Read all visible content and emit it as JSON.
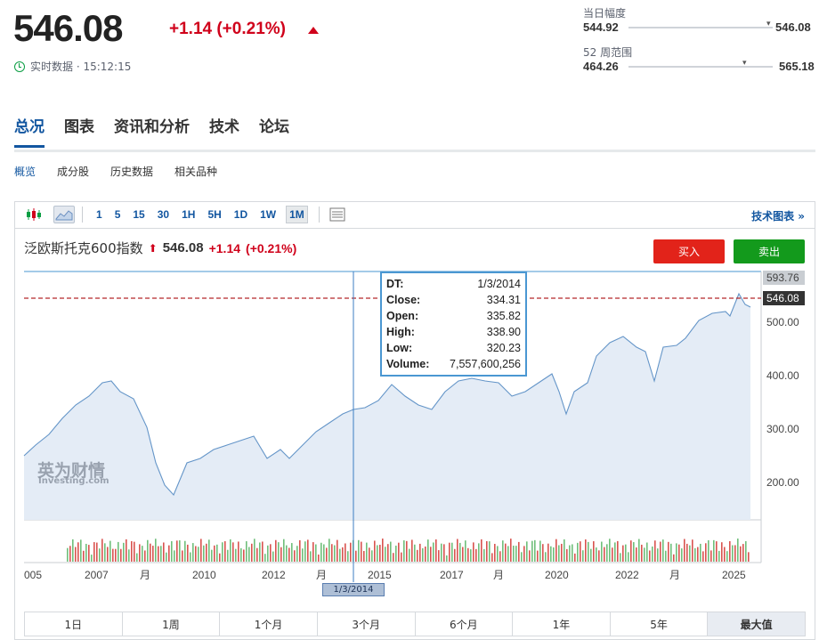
{
  "quote": {
    "price": "546.08",
    "change": "+1.14",
    "change_pct": "(+0.21%)",
    "realtime_label": "实时数据 · 15:12:15"
  },
  "day_range": {
    "label": "当日幅度",
    "low": "544.92",
    "high": "546.08",
    "position": 0.99
  },
  "week52_range": {
    "label": "52 周范围",
    "low": "464.26",
    "high": "565.18",
    "position": 0.81
  },
  "tabs": [
    "总况",
    "图表",
    "资讯和分析",
    "技术",
    "论坛"
  ],
  "subtabs": [
    "概览",
    "成分股",
    "历史数据",
    "相关品种"
  ],
  "toolbar": {
    "timeframes": [
      "1",
      "5",
      "15",
      "30",
      "1H",
      "5H",
      "1D",
      "1W",
      "1M"
    ],
    "active": "1M",
    "tech_chart_link": "技术图表 »"
  },
  "chart": {
    "name": "泛欧斯托克600指数",
    "price": "546.08",
    "change": "+1.14",
    "change_pct": "(+0.21%)",
    "buy_label": "买入",
    "sell_label": "卖出",
    "watermark_cn": "英为财情",
    "watermark_en": "Investing.com",
    "crosshair_date": "1/3/2014",
    "tooltip": [
      {
        "k": "DT:",
        "v": "1/3/2014"
      },
      {
        "k": "Close:",
        "v": "334.31"
      },
      {
        "k": "Open:",
        "v": "335.82"
      },
      {
        "k": "High:",
        "v": "338.90"
      },
      {
        "k": "Low:",
        "v": "320.23"
      },
      {
        "k": "Volume:",
        "v": "7,557,600,256"
      }
    ],
    "y_labels": [
      "593.76",
      "546.08",
      "500.00",
      "400.00",
      "300.00",
      "200.00"
    ],
    "x_labels": [
      "005",
      "2007",
      "月",
      "2010",
      "2012",
      "月",
      "2015",
      "2017",
      "月",
      "2020",
      "2022",
      "月",
      "2025"
    ]
  },
  "periods": [
    "1日",
    "1周",
    "1个月",
    "3个月",
    "6个月",
    "1年",
    "5年",
    "最大值"
  ],
  "active_period": "最大值"
}
